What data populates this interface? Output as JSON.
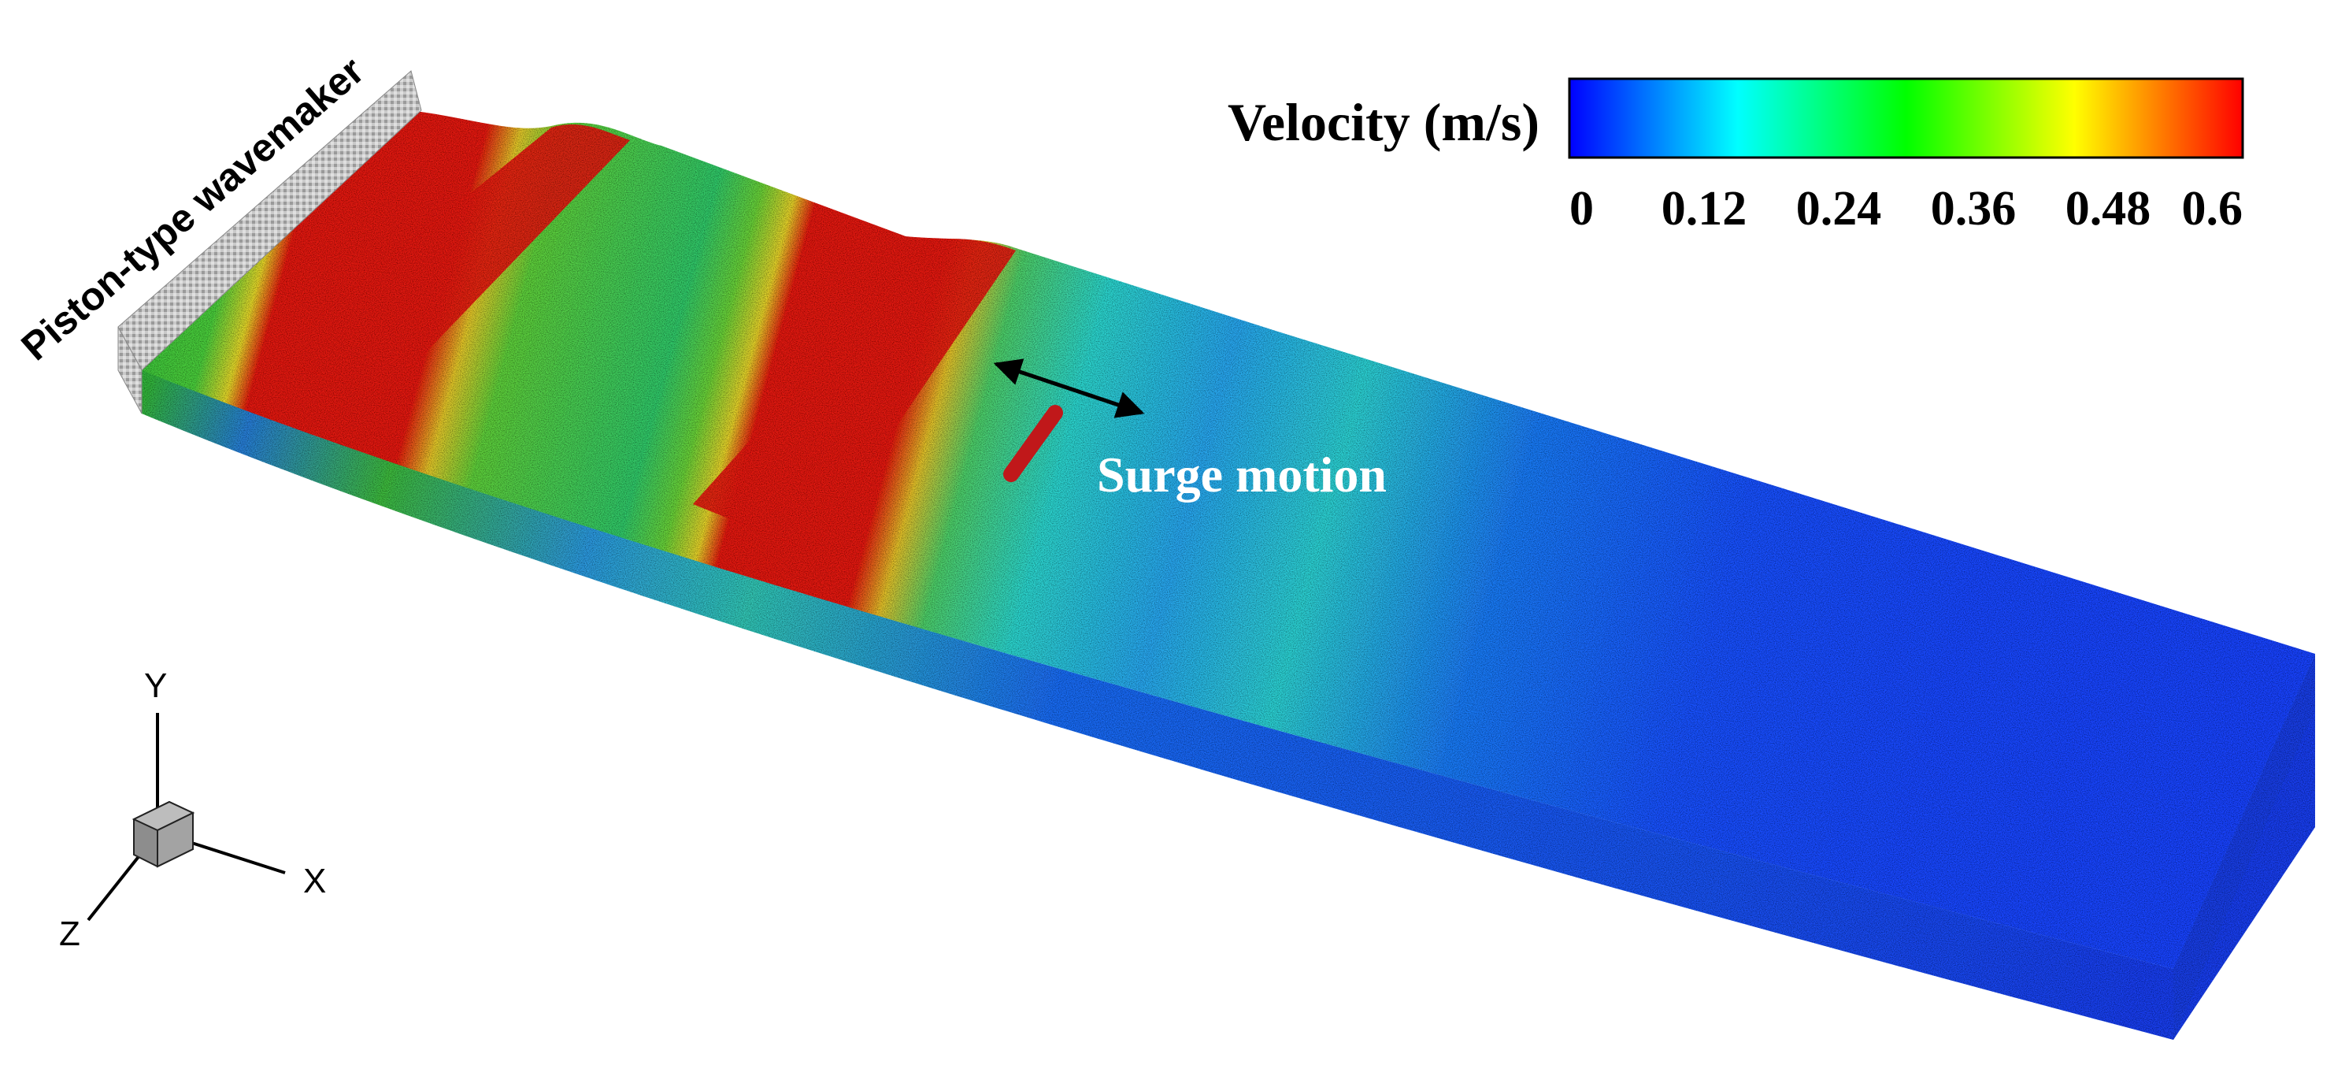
{
  "wavemaker_label": "Piston-type wavemaker",
  "motion_label": "Surge motion",
  "colorbar": {
    "title": "Velocity (m/s)",
    "ticks": [
      "0",
      "0.12",
      "0.24",
      "0.36",
      "0.48",
      "0.6"
    ],
    "range": [
      0,
      0.6
    ],
    "colormap": [
      "#0000ff",
      "#00ffff",
      "#00ff00",
      "#ffff00",
      "#ff0000"
    ]
  },
  "axes_triad": {
    "x": "X",
    "y": "Y",
    "z": "Z"
  },
  "colors": {
    "red": "#e41a14",
    "green": "#3cc83a",
    "cyan": "#2fd7d6",
    "blue": "#1a4bff",
    "wavemaker": "#bdbdbd",
    "body": "#c0181a"
  }
}
